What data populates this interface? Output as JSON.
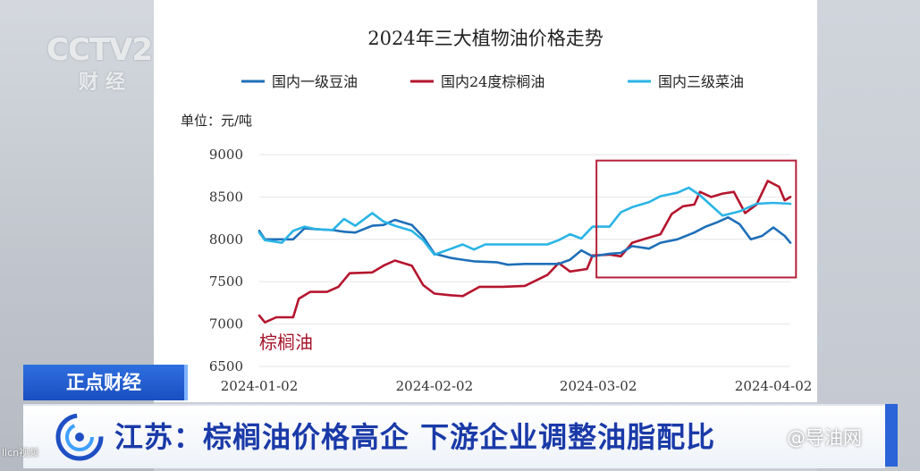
{
  "chart_data": {
    "type": "line",
    "title": "2024年三大植物油价格走势",
    "unit_label": "单位：元/吨",
    "ylim": [
      6500,
      9000
    ],
    "yticks": [
      6500,
      7000,
      7500,
      8000,
      8500,
      9000
    ],
    "xlim": [
      "2024-01-02",
      "2024-04-05"
    ],
    "xticks": [
      "2024-01-02",
      "2024-02-02",
      "2024-03-02",
      "2024-04-02"
    ],
    "legend_position": "top",
    "annotation": "棕榈油",
    "highlight_range": {
      "x": [
        "2024-03-02",
        "2024-04-06"
      ],
      "y": [
        7550,
        8930
      ],
      "color": "#b5203a"
    },
    "series": [
      {
        "name": "国内一级豆油",
        "color": "#1f6fb8",
        "points": [
          [
            "2024-01-02",
            8100
          ],
          [
            "2024-01-03",
            8000
          ],
          [
            "2024-01-05",
            8000
          ],
          [
            "2024-01-08",
            8000
          ],
          [
            "2024-01-10",
            8130
          ],
          [
            "2024-01-12",
            8120
          ],
          [
            "2024-01-15",
            8110
          ],
          [
            "2024-01-17",
            8090
          ],
          [
            "2024-01-19",
            8080
          ],
          [
            "2024-01-22",
            8160
          ],
          [
            "2024-01-24",
            8170
          ],
          [
            "2024-01-26",
            8230
          ],
          [
            "2024-01-29",
            8170
          ],
          [
            "2024-01-31",
            8030
          ],
          [
            "2024-02-02",
            7830
          ],
          [
            "2024-02-05",
            7780
          ],
          [
            "2024-02-07",
            7760
          ],
          [
            "2024-02-09",
            7740
          ],
          [
            "2024-02-13",
            7730
          ],
          [
            "2024-02-15",
            7700
          ],
          [
            "2024-02-18",
            7710
          ],
          [
            "2024-02-21",
            7710
          ],
          [
            "2024-02-24",
            7710
          ],
          [
            "2024-02-26",
            7760
          ],
          [
            "2024-02-28",
            7870
          ],
          [
            "2024-03-01",
            7800
          ],
          [
            "2024-03-04",
            7830
          ],
          [
            "2024-03-06",
            7840
          ],
          [
            "2024-03-08",
            7920
          ],
          [
            "2024-03-11",
            7890
          ],
          [
            "2024-03-13",
            7960
          ],
          [
            "2024-03-16",
            8000
          ],
          [
            "2024-03-19",
            8080
          ],
          [
            "2024-03-21",
            8150
          ],
          [
            "2024-03-23",
            8200
          ],
          [
            "2024-03-25",
            8260
          ],
          [
            "2024-03-27",
            8180
          ],
          [
            "2024-03-29",
            8000
          ],
          [
            "2024-03-31",
            8040
          ],
          [
            "2024-04-02",
            8140
          ],
          [
            "2024-04-04",
            8040
          ],
          [
            "2024-04-05",
            7960
          ]
        ]
      },
      {
        "name": "国内24度棕榈油",
        "color": "#b5152e",
        "points": [
          [
            "2024-01-02",
            7100
          ],
          [
            "2024-01-03",
            7020
          ],
          [
            "2024-01-05",
            7080
          ],
          [
            "2024-01-08",
            7080
          ],
          [
            "2024-01-09",
            7300
          ],
          [
            "2024-01-11",
            7380
          ],
          [
            "2024-01-14",
            7380
          ],
          [
            "2024-01-16",
            7440
          ],
          [
            "2024-01-18",
            7600
          ],
          [
            "2024-01-22",
            7610
          ],
          [
            "2024-01-24",
            7690
          ],
          [
            "2024-01-26",
            7750
          ],
          [
            "2024-01-29",
            7690
          ],
          [
            "2024-01-31",
            7460
          ],
          [
            "2024-02-02",
            7360
          ],
          [
            "2024-02-05",
            7340
          ],
          [
            "2024-02-07",
            7330
          ],
          [
            "2024-02-10",
            7440
          ],
          [
            "2024-02-14",
            7440
          ],
          [
            "2024-02-18",
            7450
          ],
          [
            "2024-02-22",
            7580
          ],
          [
            "2024-02-24",
            7720
          ],
          [
            "2024-02-26",
            7620
          ],
          [
            "2024-02-29",
            7650
          ],
          [
            "2024-03-01",
            7810
          ],
          [
            "2024-03-04",
            7820
          ],
          [
            "2024-03-06",
            7800
          ],
          [
            "2024-03-08",
            7960
          ],
          [
            "2024-03-10",
            8000
          ],
          [
            "2024-03-13",
            8060
          ],
          [
            "2024-03-15",
            8300
          ],
          [
            "2024-03-17",
            8390
          ],
          [
            "2024-03-19",
            8410
          ],
          [
            "2024-03-20",
            8560
          ],
          [
            "2024-03-22",
            8500
          ],
          [
            "2024-03-24",
            8540
          ],
          [
            "2024-03-26",
            8560
          ],
          [
            "2024-03-28",
            8310
          ],
          [
            "2024-03-30",
            8410
          ],
          [
            "2024-04-01",
            8690
          ],
          [
            "2024-04-03",
            8620
          ],
          [
            "2024-04-04",
            8460
          ],
          [
            "2024-04-05",
            8500
          ]
        ]
      },
      {
        "name": "国内三级菜油",
        "color": "#2ab4e6",
        "points": [
          [
            "2024-01-02",
            8080
          ],
          [
            "2024-01-03",
            7990
          ],
          [
            "2024-01-06",
            7960
          ],
          [
            "2024-01-08",
            8100
          ],
          [
            "2024-01-10",
            8150
          ],
          [
            "2024-01-12",
            8120
          ],
          [
            "2024-01-15",
            8110
          ],
          [
            "2024-01-17",
            8240
          ],
          [
            "2024-01-19",
            8160
          ],
          [
            "2024-01-22",
            8310
          ],
          [
            "2024-01-24",
            8210
          ],
          [
            "2024-01-26",
            8160
          ],
          [
            "2024-01-29",
            8100
          ],
          [
            "2024-01-31",
            7990
          ],
          [
            "2024-02-02",
            7820
          ],
          [
            "2024-02-05",
            7890
          ],
          [
            "2024-02-07",
            7940
          ],
          [
            "2024-02-09",
            7880
          ],
          [
            "2024-02-11",
            7940
          ],
          [
            "2024-02-15",
            7940
          ],
          [
            "2024-02-19",
            7940
          ],
          [
            "2024-02-22",
            7940
          ],
          [
            "2024-02-24",
            7990
          ],
          [
            "2024-02-26",
            8060
          ],
          [
            "2024-02-28",
            8010
          ],
          [
            "2024-03-01",
            8150
          ],
          [
            "2024-03-04",
            8150
          ],
          [
            "2024-03-06",
            8320
          ],
          [
            "2024-03-08",
            8380
          ],
          [
            "2024-03-11",
            8440
          ],
          [
            "2024-03-13",
            8510
          ],
          [
            "2024-03-16",
            8550
          ],
          [
            "2024-03-18",
            8610
          ],
          [
            "2024-03-20",
            8520
          ],
          [
            "2024-03-22",
            8400
          ],
          [
            "2024-03-24",
            8280
          ],
          [
            "2024-03-27",
            8330
          ],
          [
            "2024-03-30",
            8420
          ],
          [
            "2024-04-02",
            8430
          ],
          [
            "2024-04-05",
            8420
          ]
        ]
      }
    ]
  },
  "overlay": {
    "program_tag": "正点财经",
    "headline": "江苏：棕榈油价格高企 下游企业调整油脂配比",
    "logo_top": "CCTV2",
    "logo_bottom": "财经",
    "source_watermark": "llcn视频",
    "brand_watermark": "@导油网"
  }
}
